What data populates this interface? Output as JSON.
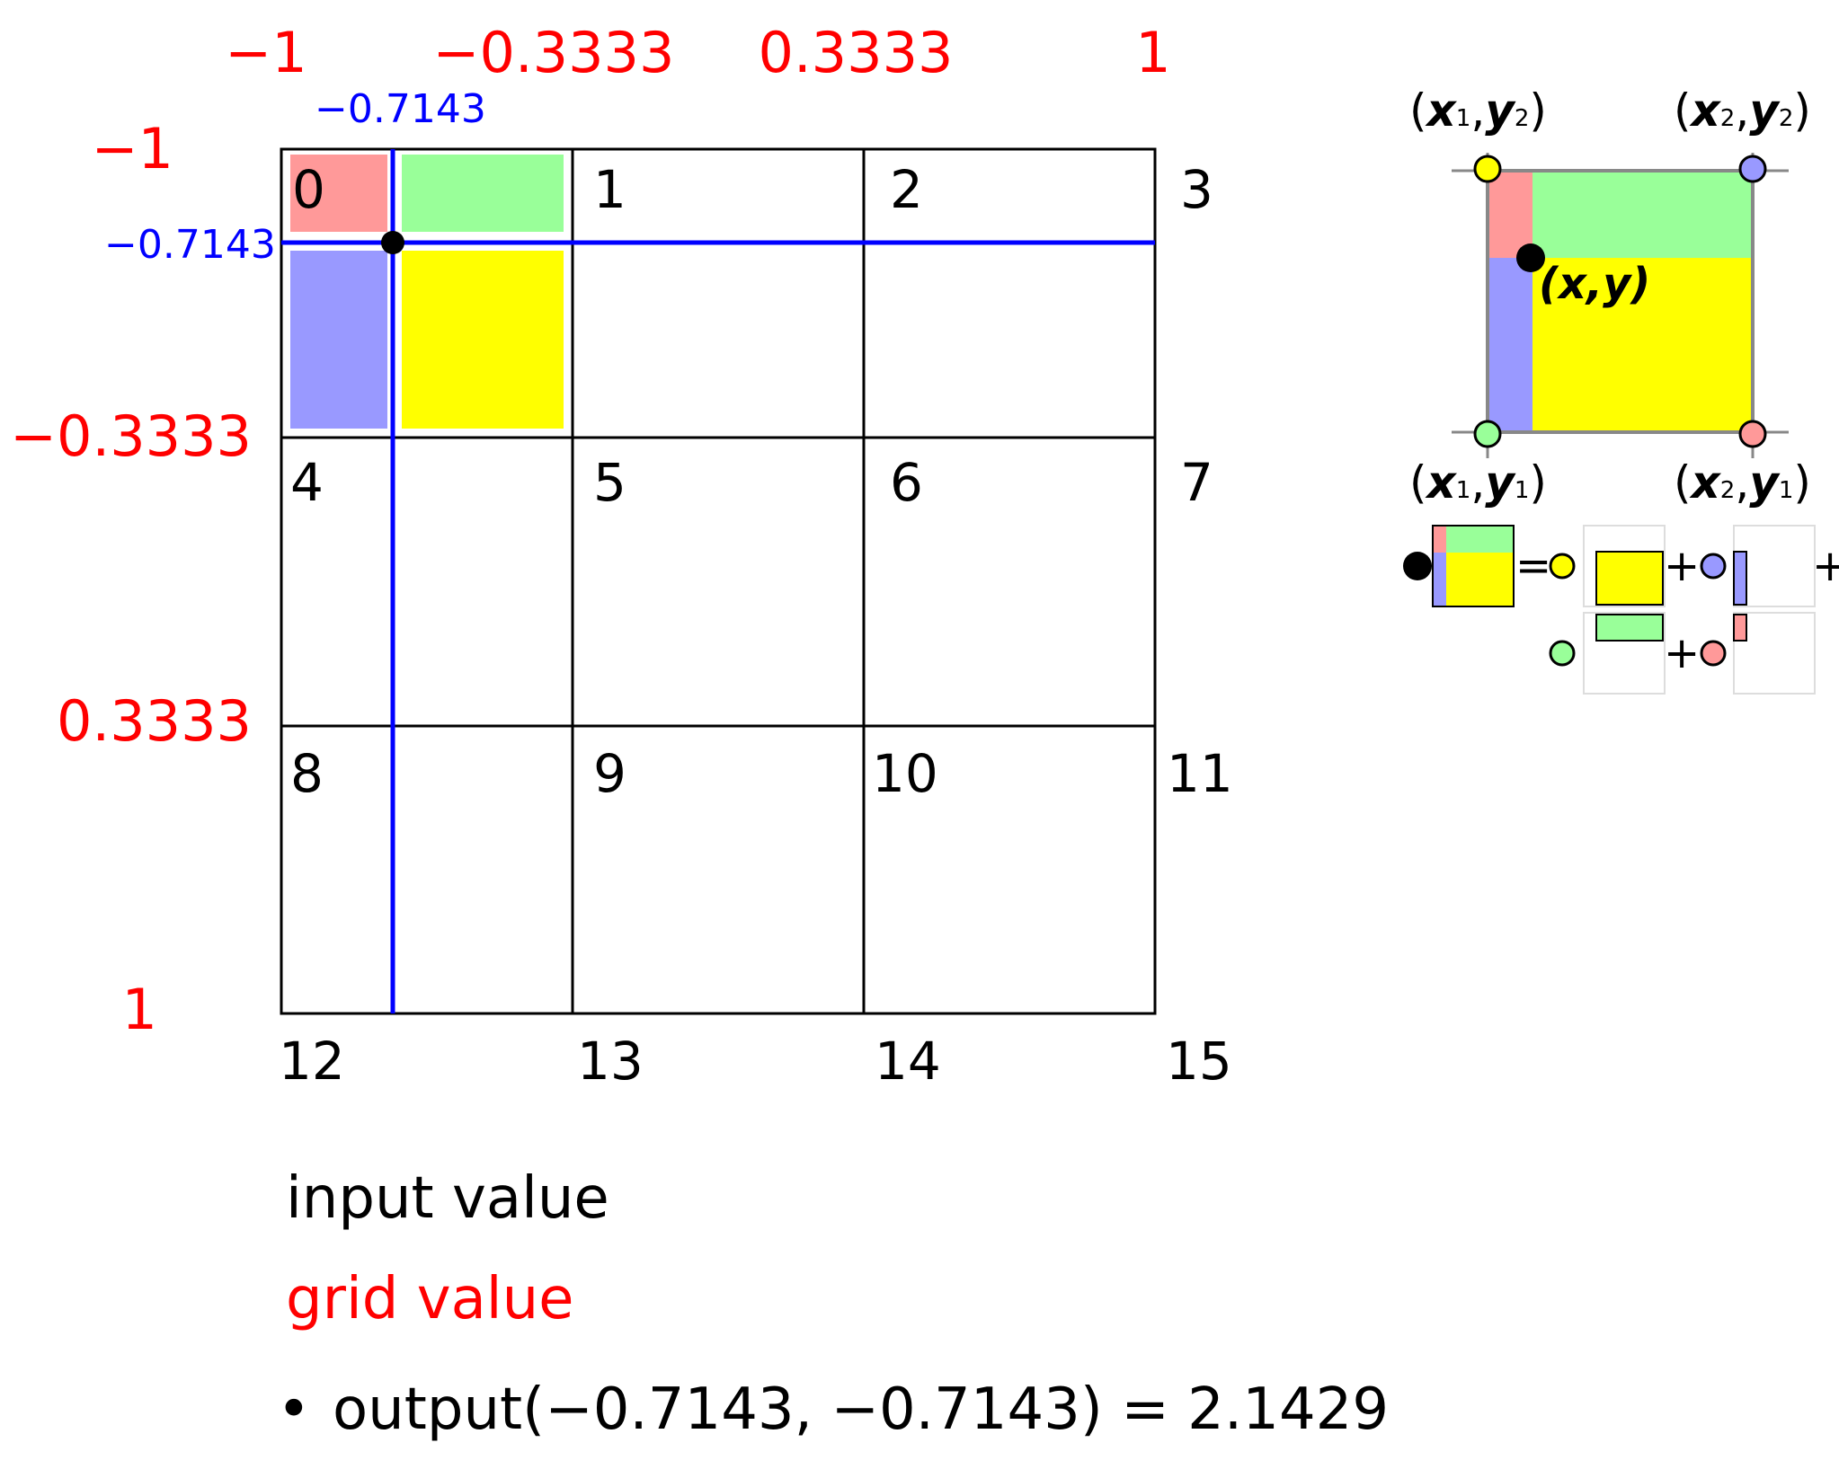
{
  "grid": {
    "x_ticks": [
      "−1",
      "−0.3333",
      "0.3333",
      "1"
    ],
    "y_ticks": [
      "−1",
      "−0.3333",
      "0.3333",
      "1"
    ],
    "input_x_label": "−0.7143",
    "input_y_label": "−0.7143",
    "cell_indices": [
      "0",
      "1",
      "2",
      "3",
      "4",
      "5",
      "6",
      "7",
      "8",
      "9",
      "10",
      "11",
      "12",
      "13",
      "14",
      "15"
    ]
  },
  "corner_labels": {
    "x1y2_open": "(",
    "x1y2_x": "x",
    "x1y2_xs": "1",
    "x1y2_comma": ",",
    "x1y2_y": "y",
    "x1y2_ys": "2",
    "x1y2_close": ")",
    "x2y2_open": "(",
    "x2y2_x": "x",
    "x2y2_xs": "2",
    "x2y2_comma": ",",
    "x2y2_y": "y",
    "x2y2_ys": "2",
    "x2y2_close": ")",
    "x1y1_open": "(",
    "x1y1_x": "x",
    "x1y1_xs": "1",
    "x1y1_comma": ",",
    "x1y1_y": "y",
    "x1y1_ys": "1",
    "x1y1_close": ")",
    "x2y1_open": "(",
    "x2y1_x": "x",
    "x2y1_xs": "2",
    "x2y1_comma": ",",
    "x2y1_y": "y",
    "x2y1_ys": "1",
    "x2y1_close": ")",
    "point": "(x,y)"
  },
  "formula": {
    "equals": "=",
    "plus": "+"
  },
  "legend": {
    "input_value": "input value",
    "grid_value": "grid value",
    "bullet": "•",
    "output_text": "output(−0.7143, −0.7143) = 2.1429"
  },
  "colors": {
    "red_region": "#ff9999",
    "green_region": "#99ff99",
    "blue_region": "#9999ff",
    "yellow_region": "#ffff00",
    "grid_label": "#ff0000",
    "input_line": "#0000ff"
  }
}
